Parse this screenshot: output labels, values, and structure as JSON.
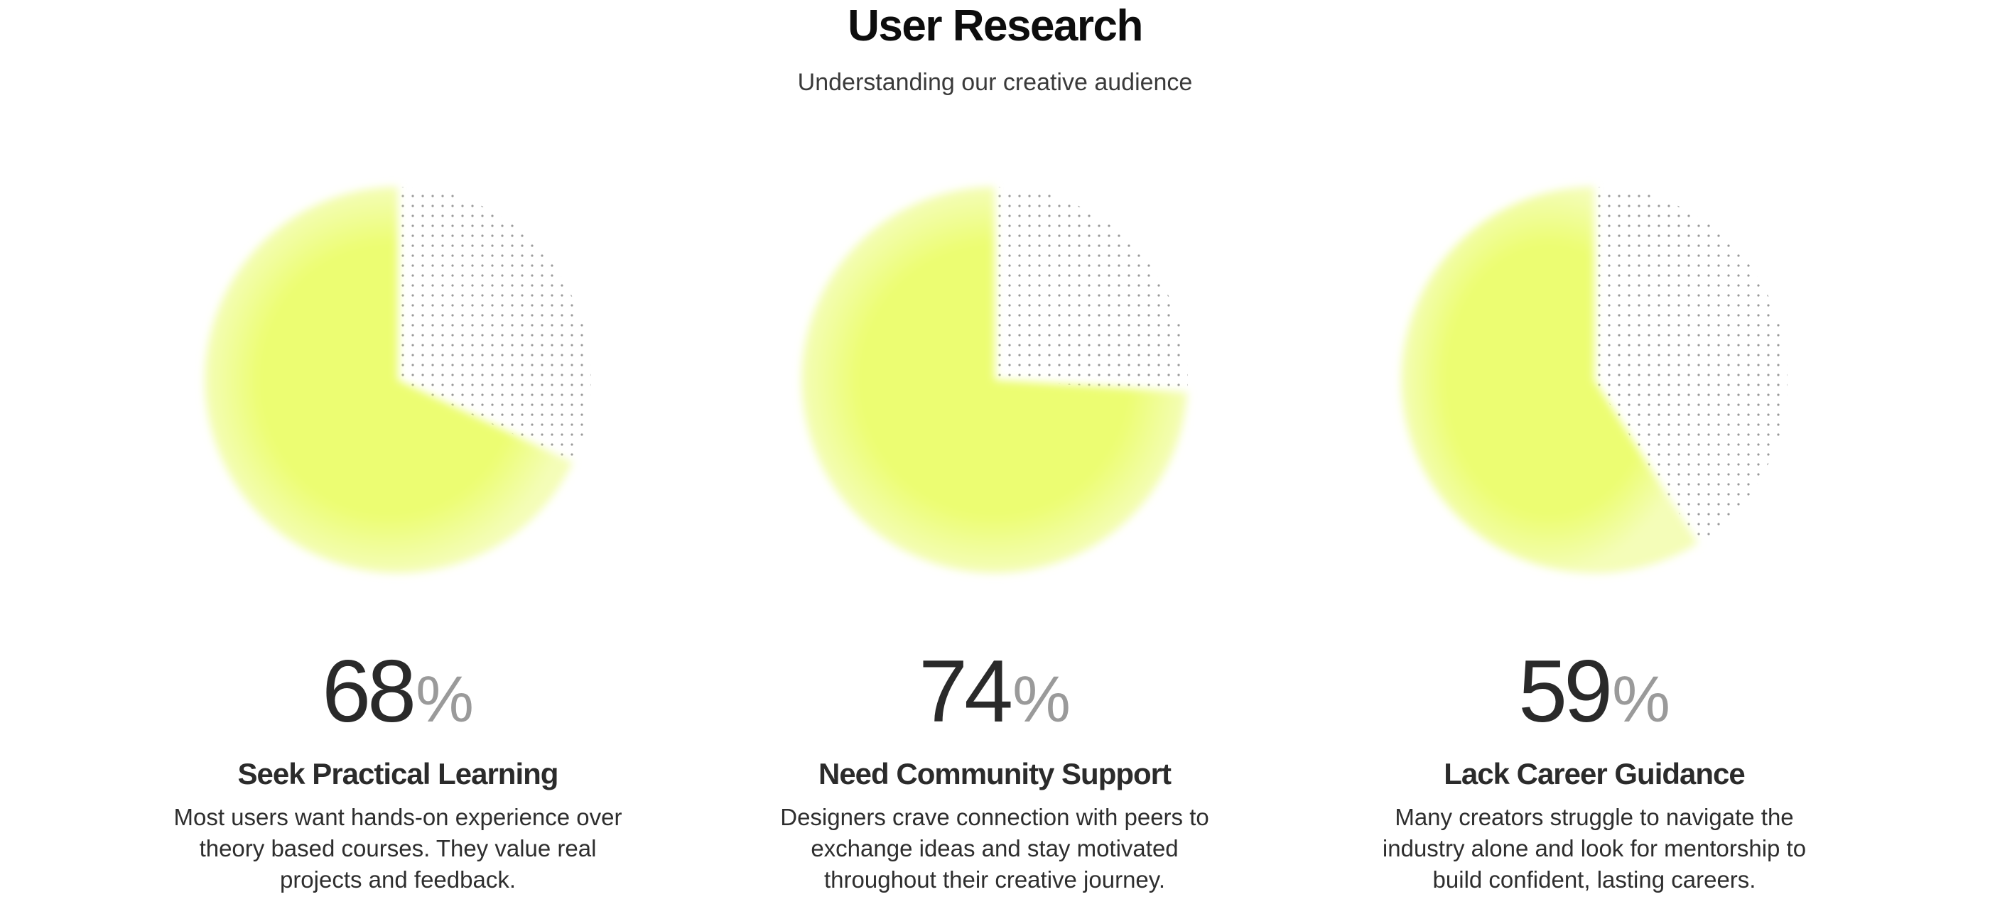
{
  "header": {
    "title": "User Research",
    "subtitle": "Understanding our creative audience"
  },
  "colors": {
    "accent": "#ecfd72",
    "accent_edge": "#f4fdb8",
    "dots": "#9a9a9a"
  },
  "chart_data": [
    {
      "type": "pie",
      "categories": [
        "Seek Practical Learning",
        ""
      ],
      "values": [
        68,
        32
      ],
      "label": "68",
      "unit": "%"
    },
    {
      "type": "pie",
      "categories": [
        "Need Community Support",
        ""
      ],
      "values": [
        74,
        26
      ],
      "label": "74",
      "unit": "%"
    },
    {
      "type": "pie",
      "categories": [
        "Lack Career Guidance",
        ""
      ],
      "values": [
        59,
        41
      ],
      "label": "59",
      "unit": "%"
    }
  ],
  "cards": [
    {
      "value": "68",
      "unit": "%",
      "title": "Seek Practical Learning",
      "description": "Most users want hands-on experience over theory based courses. They value real projects and feedback."
    },
    {
      "value": "74",
      "unit": "%",
      "title": "Need Community Support",
      "description": "Designers crave connection with peers to exchange ideas and stay motivated throughout their creative journey."
    },
    {
      "value": "59",
      "unit": "%",
      "title": "Lack Career Guidance",
      "description": "Many creators struggle to navigate the industry alone and look for mentorship to build confident, lasting careers."
    }
  ]
}
